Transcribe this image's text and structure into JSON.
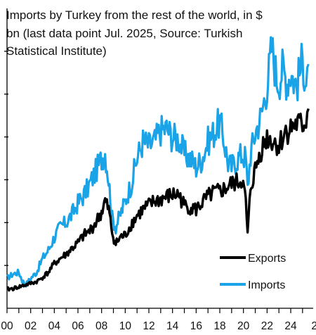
{
  "chart_data": {
    "type": "line",
    "title_lines": [
      "Imports by Turkey from the rest of the world, in $",
      "bn (last data point Jul. 2025, Source: Turkish",
      "Statistical Institute)"
    ],
    "xlabel": "",
    "ylabel": "",
    "x_tick_labels": [
      "00",
      "02",
      "04",
      "06",
      "08",
      "10",
      "12",
      "14",
      "16",
      "18",
      "20",
      "22",
      "24",
      "2"
    ],
    "xlim": [
      2000.0,
      2025.9
    ],
    "ylim": [
      0,
      35
    ],
    "y_ticks": [
      5,
      10,
      15,
      20,
      25,
      30
    ],
    "y_tick_labels_visible": false,
    "legend_position": "bottom-right",
    "series": [
      {
        "name": "Exports",
        "color": "#000000",
        "x": [
          2000.0,
          2000.5,
          2001.0,
          2001.5,
          2002.0,
          2002.5,
          2003.0,
          2003.5,
          2004.0,
          2004.5,
          2005.0,
          2005.5,
          2006.0,
          2006.5,
          2007.0,
          2007.5,
          2008.0,
          2008.3,
          2008.6,
          2008.9,
          2009.2,
          2009.6,
          2010.0,
          2010.5,
          2011.0,
          2011.5,
          2012.0,
          2012.5,
          2013.0,
          2013.5,
          2014.0,
          2014.5,
          2015.0,
          2015.5,
          2016.0,
          2016.5,
          2017.0,
          2017.5,
          2018.0,
          2018.5,
          2019.0,
          2019.5,
          2019.9,
          2020.2,
          2020.35,
          2020.6,
          2021.0,
          2021.5,
          2022.0,
          2022.5,
          2023.0,
          2023.5,
          2024.0,
          2024.5,
          2025.0,
          2025.3,
          2025.5
        ],
        "values": [
          2.2,
          2.3,
          2.5,
          2.7,
          2.9,
          3.1,
          3.6,
          4.2,
          5.2,
          5.8,
          6.3,
          7.0,
          7.6,
          8.5,
          9.0,
          10.0,
          11.2,
          12.5,
          11.5,
          8.8,
          7.5,
          8.3,
          8.5,
          9.8,
          10.8,
          11.5,
          12.0,
          12.5,
          12.7,
          13.0,
          13.2,
          13.3,
          12.0,
          11.8,
          11.5,
          12.3,
          13.0,
          13.5,
          13.6,
          14.0,
          14.5,
          14.7,
          15.0,
          12.5,
          8.5,
          14.0,
          16.2,
          18.5,
          20.0,
          19.5,
          19.0,
          20.5,
          21.0,
          21.5,
          21.3,
          22.0,
          23.3
        ]
      },
      {
        "name": "Imports",
        "color": "#1aa3e6",
        "x": [
          2000.0,
          2000.5,
          2001.0,
          2001.3,
          2001.6,
          2002.0,
          2002.5,
          2003.0,
          2003.5,
          2004.0,
          2004.5,
          2005.0,
          2005.5,
          2006.0,
          2006.5,
          2007.0,
          2007.5,
          2008.0,
          2008.3,
          2008.6,
          2008.9,
          2009.2,
          2009.6,
          2010.0,
          2010.5,
          2011.0,
          2011.5,
          2012.0,
          2012.5,
          2013.0,
          2013.5,
          2014.0,
          2014.5,
          2015.0,
          2015.5,
          2016.0,
          2016.5,
          2017.0,
          2017.5,
          2018.0,
          2018.3,
          2018.7,
          2019.0,
          2019.5,
          2019.9,
          2020.2,
          2020.35,
          2020.6,
          2021.0,
          2021.5,
          2022.0,
          2022.4,
          2022.8,
          2023.0,
          2023.3,
          2023.7,
          2024.0,
          2024.5,
          2025.0,
          2025.3,
          2025.5
        ],
        "values": [
          3.5,
          4.0,
          4.2,
          3.2,
          2.8,
          3.5,
          4.2,
          5.8,
          6.8,
          8.3,
          9.5,
          10.0,
          11.0,
          12.3,
          13.2,
          14.5,
          16.0,
          17.5,
          18.2,
          15.0,
          10.5,
          9.5,
          11.0,
          12.5,
          14.5,
          17.5,
          19.5,
          19.0,
          19.5,
          20.8,
          21.0,
          20.0,
          19.8,
          18.0,
          17.5,
          16.5,
          17.5,
          19.5,
          20.5,
          21.8,
          20.0,
          17.0,
          16.5,
          17.5,
          18.0,
          17.5,
          14.0,
          18.0,
          20.5,
          22.5,
          26.0,
          30.5,
          27.0,
          26.5,
          28.0,
          26.5,
          27.5,
          26.0,
          29.0,
          26.5,
          28.5
        ]
      }
    ]
  }
}
